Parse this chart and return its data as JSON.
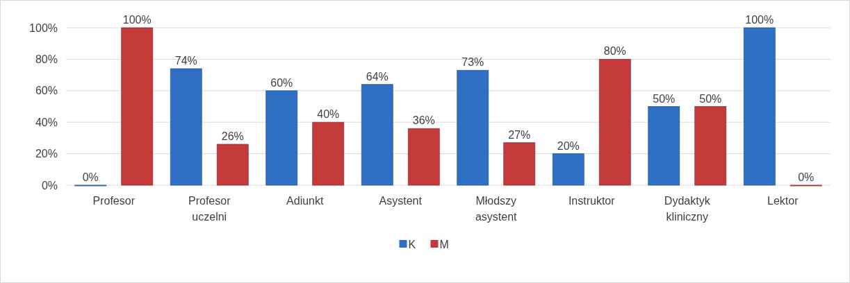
{
  "chart_data": {
    "type": "bar",
    "categories": [
      "Profesor",
      "Profesor uczelni",
      "Adiunkt",
      "Asystent",
      "Młodszy asystent",
      "Instruktor",
      "Dydaktyk kliniczny",
      "Lektor"
    ],
    "series": [
      {
        "name": "K",
        "color": "#2f6fc4",
        "values": [
          0,
          74,
          60,
          64,
          73,
          20,
          50,
          100
        ],
        "value_labels": [
          "0%",
          "74%",
          "60%",
          "64%",
          "73%",
          "20%",
          "50%",
          "100%"
        ]
      },
      {
        "name": "M",
        "color": "#c43a3a",
        "values": [
          100,
          26,
          40,
          36,
          27,
          80,
          50,
          0
        ],
        "value_labels": [
          "100%",
          "26%",
          "40%",
          "36%",
          "27%",
          "80%",
          "50%",
          "0%"
        ]
      }
    ],
    "ylim": [
      0,
      100
    ],
    "yticks": [
      {
        "value": 0,
        "label": "0%"
      },
      {
        "value": 20,
        "label": "20%"
      },
      {
        "value": 40,
        "label": "40%"
      },
      {
        "value": 60,
        "label": "60%"
      },
      {
        "value": 80,
        "label": "80%"
      },
      {
        "value": 100,
        "label": "100%"
      }
    ],
    "grid": "y",
    "legend": "bottom"
  }
}
